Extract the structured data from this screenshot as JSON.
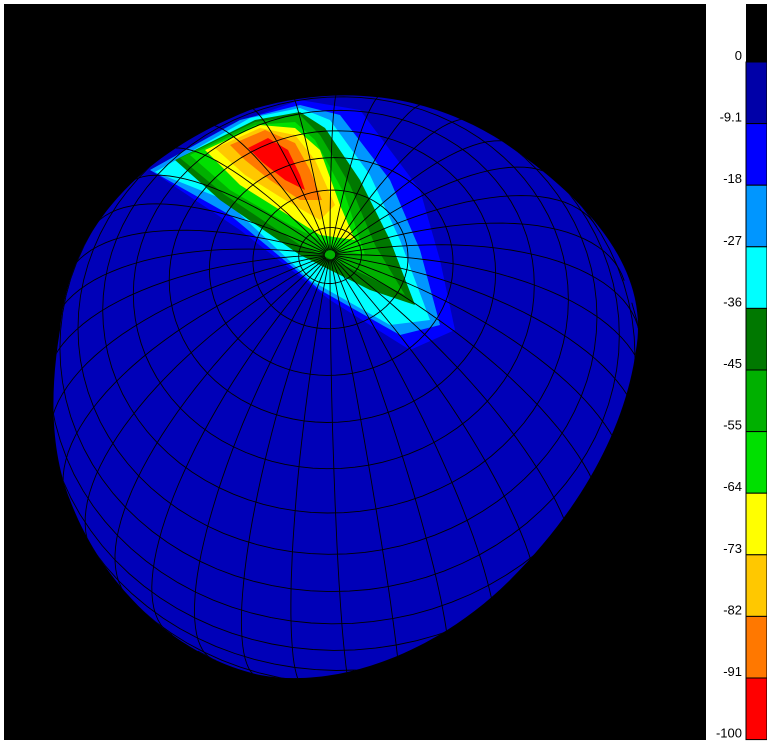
{
  "legend": {
    "labels": [
      "0",
      "-9.1",
      "-18",
      "-27",
      "-36",
      "-45",
      "-55",
      "-64",
      "-73",
      "-82",
      "-91",
      "-100"
    ],
    "colors": [
      "#0000a8",
      "#0000ff",
      "#0096ff",
      "#00ffff",
      "#007800",
      "#00b000",
      "#00e000",
      "#ffff00",
      "#ffc800",
      "#ff7800",
      "#ff0000"
    ]
  }
}
